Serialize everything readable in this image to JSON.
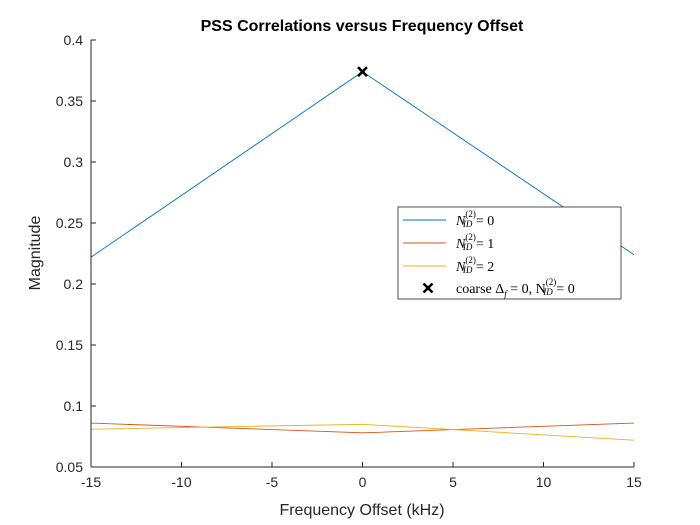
{
  "chart_data": {
    "type": "line",
    "title": "PSS Correlations versus Frequency Offset",
    "xlabel": "Frequency Offset (kHz)",
    "ylabel": "Magnitude",
    "xlim": [
      -15,
      15
    ],
    "ylim": [
      0.05,
      0.4
    ],
    "xticks": [
      -15,
      -10,
      -5,
      0,
      5,
      10,
      15
    ],
    "xtick_labels": [
      "-15",
      "-10",
      "-5",
      "0",
      "5",
      "10",
      "15"
    ],
    "yticks": [
      0.05,
      0.1,
      0.15,
      0.2,
      0.25,
      0.3,
      0.35,
      0.4
    ],
    "ytick_labels": [
      "0.05",
      "0.1",
      "0.15",
      "0.2",
      "0.25",
      "0.3",
      "0.35",
      "0.4"
    ],
    "grid": false,
    "legend_position": "center-right",
    "x": [
      -15,
      0,
      15
    ],
    "series": [
      {
        "name_main": "N",
        "name_sup": "(2)",
        "name_sub": "ID",
        "name_tail": " = 0",
        "color": "#0072BD",
        "values": [
          0.222,
          0.374,
          0.224
        ]
      },
      {
        "name_main": "N",
        "name_sup": "(2)",
        "name_sub": "ID",
        "name_tail": " = 1",
        "color": "#D95319",
        "values": [
          0.086,
          0.078,
          0.086
        ]
      },
      {
        "name_main": "N",
        "name_sup": "(2)",
        "name_sub": "ID",
        "name_tail": " = 2",
        "color": "#EDB120",
        "values": [
          0.081,
          0.085,
          0.072
        ]
      }
    ],
    "marker": {
      "label_prefix": "coarse Δ",
      "label_f": "f",
      "label_mid": " = 0, N",
      "label_sup": "(2)",
      "label_sub": "ID",
      "label_tail": " = 0",
      "x": 0,
      "y": 0.374,
      "symbol": "x",
      "color": "#000000"
    }
  }
}
